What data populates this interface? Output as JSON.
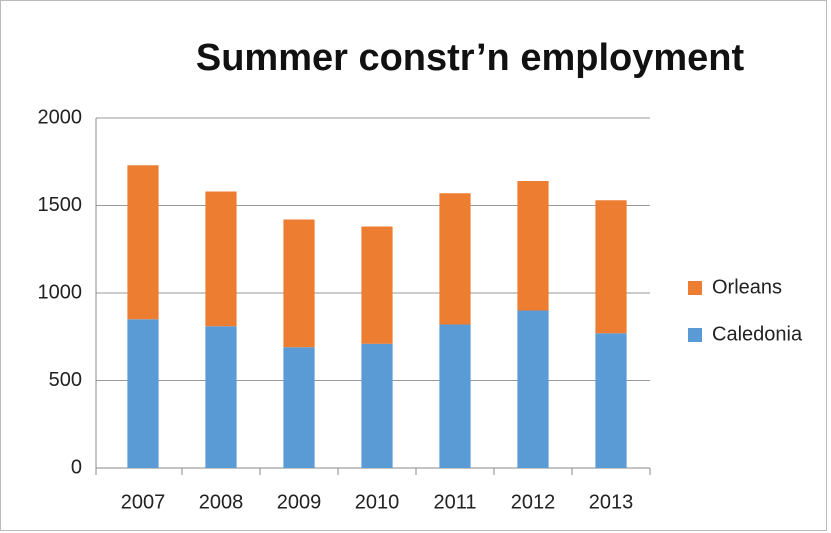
{
  "chart_data": {
    "type": "stacked_bar",
    "title": "Summer constr’n employment",
    "categories": [
      "2007",
      "2008",
      "2009",
      "2010",
      "2011",
      "2012",
      "2013"
    ],
    "series": [
      {
        "name": "Caledonia",
        "color": "#5b9bd5",
        "values": [
          850,
          810,
          690,
          710,
          820,
          900,
          770
        ]
      },
      {
        "name": "Orleans",
        "color": "#ed7d31",
        "values": [
          880,
          770,
          730,
          670,
          750,
          740,
          760
        ]
      }
    ],
    "ylim": [
      0,
      2000
    ],
    "yticks": [
      0,
      500,
      1000,
      1500,
      2000
    ],
    "grid": true,
    "legend": "right"
  }
}
